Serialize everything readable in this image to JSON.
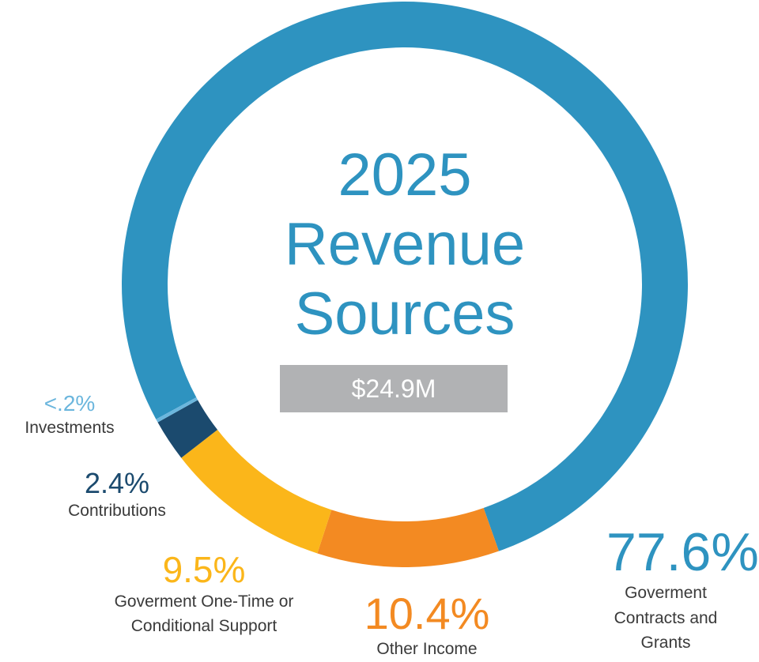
{
  "chart_data": {
    "type": "donut",
    "title": "2025 Revenue Sources",
    "total_label": "$24.9M",
    "categories": [
      "Goverment Contracts and Grants",
      "Other Income",
      "Goverment One-Time or Conditional Support",
      "Contributions",
      "Investments"
    ],
    "values": [
      77.6,
      10.4,
      9.5,
      2.4,
      0.2
    ],
    "value_labels": [
      "77.6%",
      "10.4%",
      "9.5%",
      "2.4%",
      "<.2%"
    ],
    "colors": [
      "#2e93c0",
      "#f38a22",
      "#fbb61a",
      "#1b4a6e",
      "#6bb6dd"
    ]
  }
}
